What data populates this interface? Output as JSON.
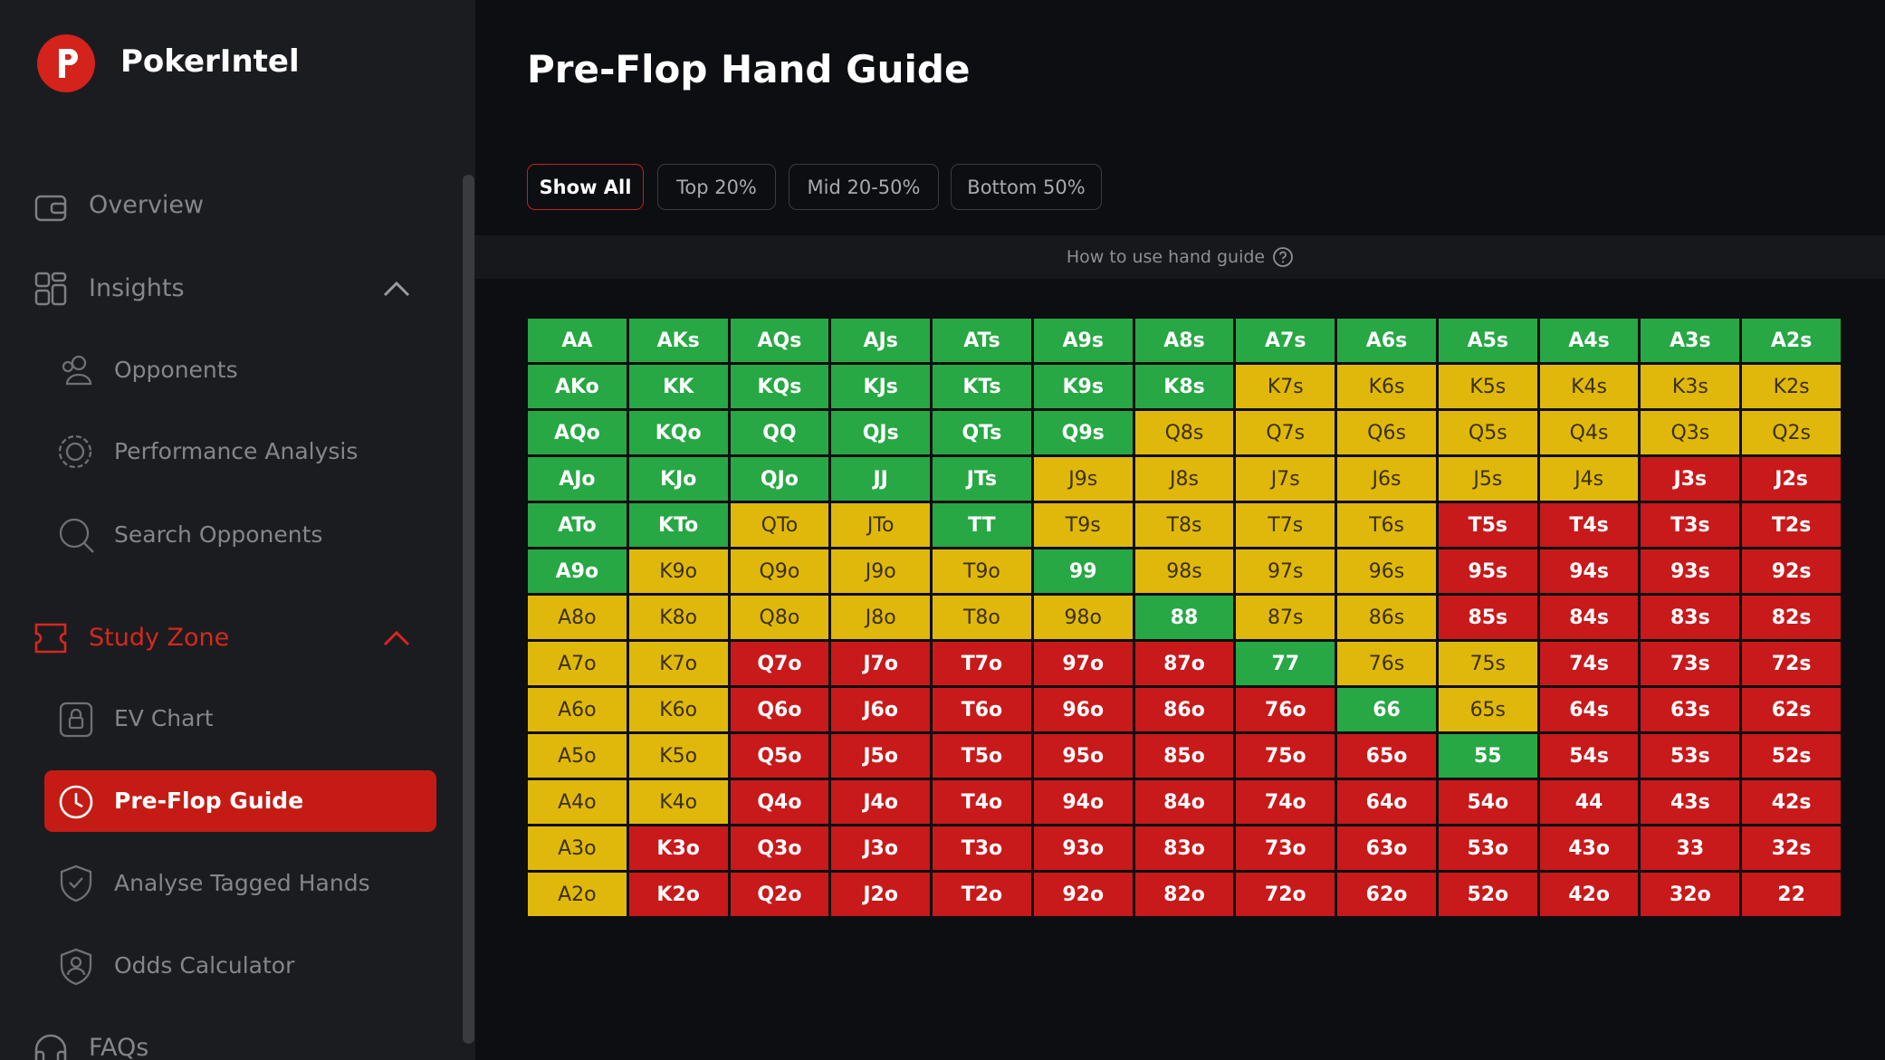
{
  "sidebar": {
    "brand": "PokerIntel",
    "items": [
      "Overview",
      "Insights",
      "Opponents",
      "Performance Analysis",
      "Search Opponents",
      "Study Zone",
      "EV Chart",
      "Pre-Flop Guide",
      "Analyse Tagged Hands",
      "Odds Calculator",
      "FAQs"
    ]
  },
  "header": {
    "title": "Pre-Flop Hand Guide"
  },
  "filters": [
    "Show All",
    "Top 20%",
    "Mid 20-50%",
    "Bottom 50%"
  ],
  "help": "How to use hand guide",
  "grid": {
    "rows": [
      [
        {
          "hand": "AA",
          "color": "#28a745"
        },
        {
          "hand": "AKs",
          "color": "#28a745"
        },
        {
          "hand": "AQs",
          "color": "#28a745"
        },
        {
          "hand": "AJs",
          "color": "#28a745"
        },
        {
          "hand": "ATs",
          "color": "#28a745"
        },
        {
          "hand": "A9s",
          "color": "#28a745"
        },
        {
          "hand": "A8s",
          "color": "#28a745"
        },
        {
          "hand": "A7s",
          "color": "#28a745"
        },
        {
          "hand": "A6s",
          "color": "#28a745"
        },
        {
          "hand": "A5s",
          "color": "#28a745"
        },
        {
          "hand": "A4s",
          "color": "#28a745"
        },
        {
          "hand": "A3s",
          "color": "#28a745"
        },
        {
          "hand": "A2s",
          "color": "#28a745"
        }
      ],
      [
        {
          "hand": "AKo",
          "color": "#28a745"
        },
        {
          "hand": "KK",
          "color": "#28a745"
        },
        {
          "hand": "KQs",
          "color": "#28a745"
        },
        {
          "hand": "KJs",
          "color": "#28a745"
        },
        {
          "hand": "KTs",
          "color": "#28a745"
        },
        {
          "hand": "K9s",
          "color": "#28a745"
        },
        {
          "hand": "K8s",
          "color": "#28a745"
        },
        {
          "hand": "K7s",
          "color": "#e0b80c"
        },
        {
          "hand": "K6s",
          "color": "#e0b80c"
        },
        {
          "hand": "K5s",
          "color": "#e0b80c"
        },
        {
          "hand": "K4s",
          "color": "#e0b80c"
        },
        {
          "hand": "K3s",
          "color": "#e0b80c"
        },
        {
          "hand": "K2s",
          "color": "#e0b80c"
        }
      ],
      [
        {
          "hand": "AQo",
          "color": "#28a745"
        },
        {
          "hand": "KQo",
          "color": "#28a745"
        },
        {
          "hand": "QQ",
          "color": "#28a745"
        },
        {
          "hand": "QJs",
          "color": "#28a745"
        },
        {
          "hand": "QTs",
          "color": "#28a745"
        },
        {
          "hand": "Q9s",
          "color": "#28a745"
        },
        {
          "hand": "Q8s",
          "color": "#e0b80c"
        },
        {
          "hand": "Q7s",
          "color": "#e0b80c"
        },
        {
          "hand": "Q6s",
          "color": "#e0b80c"
        },
        {
          "hand": "Q5s",
          "color": "#e0b80c"
        },
        {
          "hand": "Q4s",
          "color": "#e0b80c"
        },
        {
          "hand": "Q3s",
          "color": "#e0b80c"
        },
        {
          "hand": "Q2s",
          "color": "#e0b80c"
        }
      ],
      [
        {
          "hand": "AJo",
          "color": "#28a745"
        },
        {
          "hand": "KJo",
          "color": "#28a745"
        },
        {
          "hand": "QJo",
          "color": "#28a745"
        },
        {
          "hand": "JJ",
          "color": "#28a745"
        },
        {
          "hand": "JTs",
          "color": "#28a745"
        },
        {
          "hand": "J9s",
          "color": "#e0b80c"
        },
        {
          "hand": "J8s",
          "color": "#e0b80c"
        },
        {
          "hand": "J7s",
          "color": "#e0b80c"
        },
        {
          "hand": "J6s",
          "color": "#e0b80c"
        },
        {
          "hand": "J5s",
          "color": "#e0b80c"
        },
        {
          "hand": "J4s",
          "color": "#e0b80c"
        },
        {
          "hand": "J3s",
          "color": "#c8191b"
        },
        {
          "hand": "J2s",
          "color": "#c8191b"
        }
      ],
      [
        {
          "hand": "ATo",
          "color": "#28a745"
        },
        {
          "hand": "KTo",
          "color": "#28a745"
        },
        {
          "hand": "QTo",
          "color": "#e0b80c"
        },
        {
          "hand": "JTo",
          "color": "#e0b80c"
        },
        {
          "hand": "TT",
          "color": "#28a745"
        },
        {
          "hand": "T9s",
          "color": "#e0b80c"
        },
        {
          "hand": "T8s",
          "color": "#e0b80c"
        },
        {
          "hand": "T7s",
          "color": "#e0b80c"
        },
        {
          "hand": "T6s",
          "color": "#e0b80c"
        },
        {
          "hand": "T5s",
          "color": "#c8191b"
        },
        {
          "hand": "T4s",
          "color": "#c8191b"
        },
        {
          "hand": "T3s",
          "color": "#c8191b"
        },
        {
          "hand": "T2s",
          "color": "#c8191b"
        }
      ],
      [
        {
          "hand": "A9o",
          "color": "#28a745"
        },
        {
          "hand": "K9o",
          "color": "#e0b80c"
        },
        {
          "hand": "Q9o",
          "color": "#e0b80c"
        },
        {
          "hand": "J9o",
          "color": "#e0b80c"
        },
        {
          "hand": "T9o",
          "color": "#e0b80c"
        },
        {
          "hand": "99",
          "color": "#28a745"
        },
        {
          "hand": "98s",
          "color": "#e0b80c"
        },
        {
          "hand": "97s",
          "color": "#e0b80c"
        },
        {
          "hand": "96s",
          "color": "#e0b80c"
        },
        {
          "hand": "95s",
          "color": "#c8191b"
        },
        {
          "hand": "94s",
          "color": "#c8191b"
        },
        {
          "hand": "93s",
          "color": "#c8191b"
        },
        {
          "hand": "92s",
          "color": "#c8191b"
        }
      ],
      [
        {
          "hand": "A8o",
          "color": "#e0b80c"
        },
        {
          "hand": "K8o",
          "color": "#e0b80c"
        },
        {
          "hand": "Q8o",
          "color": "#e0b80c"
        },
        {
          "hand": "J8o",
          "color": "#e0b80c"
        },
        {
          "hand": "T8o",
          "color": "#e0b80c"
        },
        {
          "hand": "98o",
          "color": "#e0b80c"
        },
        {
          "hand": "88",
          "color": "#28a745"
        },
        {
          "hand": "87s",
          "color": "#e0b80c"
        },
        {
          "hand": "86s",
          "color": "#e0b80c"
        },
        {
          "hand": "85s",
          "color": "#c8191b"
        },
        {
          "hand": "84s",
          "color": "#c8191b"
        },
        {
          "hand": "83s",
          "color": "#c8191b"
        },
        {
          "hand": "82s",
          "color": "#c8191b"
        }
      ],
      [
        {
          "hand": "A7o",
          "color": "#e0b80c"
        },
        {
          "hand": "K7o",
          "color": "#e0b80c"
        },
        {
          "hand": "Q7o",
          "color": "#c8191b"
        },
        {
          "hand": "J7o",
          "color": "#c8191b"
        },
        {
          "hand": "T7o",
          "color": "#c8191b"
        },
        {
          "hand": "97o",
          "color": "#c8191b"
        },
        {
          "hand": "87o",
          "color": "#c8191b"
        },
        {
          "hand": "77",
          "color": "#28a745"
        },
        {
          "hand": "76s",
          "color": "#e0b80c"
        },
        {
          "hand": "75s",
          "color": "#e0b80c"
        },
        {
          "hand": "74s",
          "color": "#c8191b"
        },
        {
          "hand": "73s",
          "color": "#c8191b"
        },
        {
          "hand": "72s",
          "color": "#c8191b"
        }
      ],
      [
        {
          "hand": "A6o",
          "color": "#e0b80c"
        },
        {
          "hand": "K6o",
          "color": "#e0b80c"
        },
        {
          "hand": "Q6o",
          "color": "#c8191b"
        },
        {
          "hand": "J6o",
          "color": "#c8191b"
        },
        {
          "hand": "T6o",
          "color": "#c8191b"
        },
        {
          "hand": "96o",
          "color": "#c8191b"
        },
        {
          "hand": "86o",
          "color": "#c8191b"
        },
        {
          "hand": "76o",
          "color": "#c8191b"
        },
        {
          "hand": "66",
          "color": "#28a745"
        },
        {
          "hand": "65s",
          "color": "#e0b80c"
        },
        {
          "hand": "64s",
          "color": "#c8191b"
        },
        {
          "hand": "63s",
          "color": "#c8191b"
        },
        {
          "hand": "62s",
          "color": "#c8191b"
        }
      ],
      [
        {
          "hand": "A5o",
          "color": "#e0b80c"
        },
        {
          "hand": "K5o",
          "color": "#e0b80c"
        },
        {
          "hand": "Q5o",
          "color": "#c8191b"
        },
        {
          "hand": "J5o",
          "color": "#c8191b"
        },
        {
          "hand": "T5o",
          "color": "#c8191b"
        },
        {
          "hand": "95o",
          "color": "#c8191b"
        },
        {
          "hand": "85o",
          "color": "#c8191b"
        },
        {
          "hand": "75o",
          "color": "#c8191b"
        },
        {
          "hand": "65o",
          "color": "#c8191b"
        },
        {
          "hand": "55",
          "color": "#28a745"
        },
        {
          "hand": "54s",
          "color": "#c8191b"
        },
        {
          "hand": "53s",
          "color": "#c8191b"
        },
        {
          "hand": "52s",
          "color": "#c8191b"
        }
      ],
      [
        {
          "hand": "A4o",
          "color": "#e0b80c"
        },
        {
          "hand": "K4o",
          "color": "#e0b80c"
        },
        {
          "hand": "Q4o",
          "color": "#c8191b"
        },
        {
          "hand": "J4o",
          "color": "#c8191b"
        },
        {
          "hand": "T4o",
          "color": "#c8191b"
        },
        {
          "hand": "94o",
          "color": "#c8191b"
        },
        {
          "hand": "84o",
          "color": "#c8191b"
        },
        {
          "hand": "74o",
          "color": "#c8191b"
        },
        {
          "hand": "64o",
          "color": "#c8191b"
        },
        {
          "hand": "54o",
          "color": "#c8191b"
        },
        {
          "hand": "44",
          "color": "#c8191b"
        },
        {
          "hand": "43s",
          "color": "#c8191b"
        },
        {
          "hand": "42s",
          "color": "#c8191b"
        }
      ],
      [
        {
          "hand": "A3o",
          "color": "#e0b80c"
        },
        {
          "hand": "K3o",
          "color": "#c8191b"
        },
        {
          "hand": "Q3o",
          "color": "#c8191b"
        },
        {
          "hand": "J3o",
          "color": "#c8191b"
        },
        {
          "hand": "T3o",
          "color": "#c8191b"
        },
        {
          "hand": "93o",
          "color": "#c8191b"
        },
        {
          "hand": "83o",
          "color": "#c8191b"
        },
        {
          "hand": "73o",
          "color": "#c8191b"
        },
        {
          "hand": "63o",
          "color": "#c8191b"
        },
        {
          "hand": "53o",
          "color": "#c8191b"
        },
        {
          "hand": "43o",
          "color": "#c8191b"
        },
        {
          "hand": "33",
          "color": "#c8191b"
        },
        {
          "hand": "32s",
          "color": "#c8191b"
        }
      ],
      [
        {
          "hand": "A2o",
          "color": "#e0b80c"
        },
        {
          "hand": "K2o",
          "color": "#c8191b"
        },
        {
          "hand": "Q2o",
          "color": "#c8191b"
        },
        {
          "hand": "J2o",
          "color": "#c8191b"
        },
        {
          "hand": "T2o",
          "color": "#c8191b"
        },
        {
          "hand": "92o",
          "color": "#c8191b"
        },
        {
          "hand": "82o",
          "color": "#c8191b"
        },
        {
          "hand": "72o",
          "color": "#c8191b"
        },
        {
          "hand": "62o",
          "color": "#c8191b"
        },
        {
          "hand": "52o",
          "color": "#c8191b"
        },
        {
          "hand": "42o",
          "color": "#c8191b"
        },
        {
          "hand": "32o",
          "color": "#c8191b"
        },
        {
          "hand": "22",
          "color": "#c8191b"
        }
      ]
    ]
  }
}
